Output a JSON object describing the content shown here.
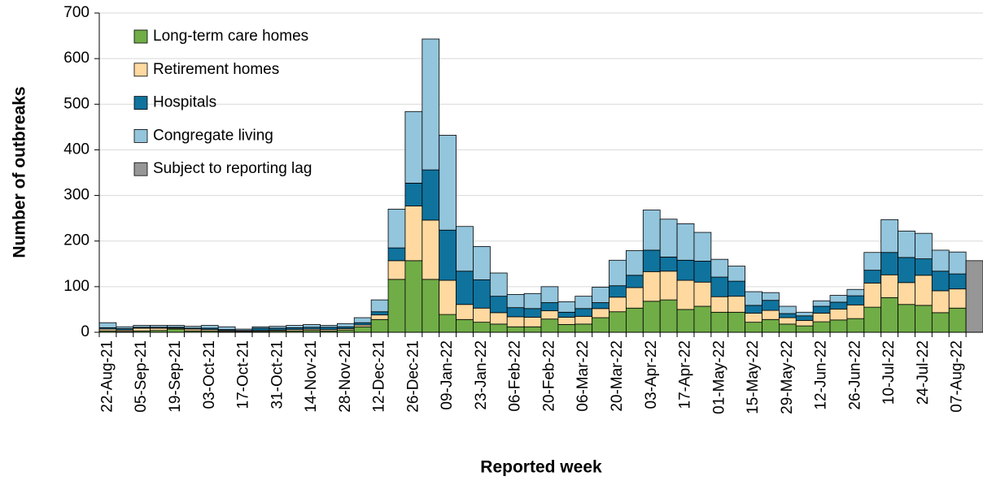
{
  "chart_data": {
    "type": "stacked_bar",
    "x_label": "Reported week",
    "y_label": "Number of outbreaks",
    "categories": [
      "22-Aug-21",
      null,
      "05-Sep-21",
      null,
      "19-Sep-21",
      null,
      "03-Oct-21",
      null,
      "17-Oct-21",
      null,
      "31-Oct-21",
      null,
      "14-Nov-21",
      null,
      "28-Nov-21",
      null,
      "12-Dec-21",
      null,
      "26-Dec-21",
      null,
      "09-Jan-22",
      null,
      "23-Jan-22",
      null,
      "06-Feb-22",
      null,
      "20-Feb-22",
      null,
      "06-Mar-22",
      null,
      "20-Mar-22",
      null,
      "03-Apr-22",
      null,
      "17-Apr-22",
      null,
      "01-May-22",
      null,
      "15-May-22",
      null,
      "29-May-22",
      null,
      "12-Jun-22",
      null,
      "26-Jun-22",
      null,
      "10-Jul-22",
      null,
      "24-Jul-22",
      null,
      "07-Aug-22",
      null
    ],
    "series": [
      {
        "name": "Long-term care homes",
        "color": "#70ad47",
        "values": [
          3,
          2,
          3,
          4,
          7,
          3,
          3,
          2,
          1,
          2,
          3,
          3,
          4,
          3,
          5,
          12,
          28,
          116,
          157,
          116,
          39,
          28,
          22,
          18,
          12,
          12,
          29,
          17,
          18,
          32,
          45,
          53,
          68,
          71,
          50,
          57,
          44,
          44,
          22,
          28,
          18,
          14,
          23,
          27,
          30,
          55,
          76,
          61,
          59,
          43,
          53,
          null
        ]
      },
      {
        "name": "Retirement homes",
        "color": "#ffd9a0",
        "values": [
          4,
          3,
          6,
          5,
          2,
          4,
          3,
          2,
          2,
          2,
          2,
          3,
          3,
          3,
          3,
          4,
          10,
          41,
          120,
          130,
          75,
          33,
          31,
          25,
          22,
          21,
          18,
          16,
          17,
          20,
          32,
          45,
          65,
          63,
          64,
          53,
          34,
          35,
          20,
          20,
          14,
          12,
          19,
          24,
          30,
          53,
          50,
          48,
          66,
          48,
          42,
          null
        ]
      },
      {
        "name": "Hospitals",
        "color": "#0f739e",
        "values": [
          3,
          3,
          2,
          2,
          2,
          2,
          3,
          2,
          1,
          5,
          4,
          4,
          4,
          5,
          4,
          5,
          7,
          28,
          50,
          110,
          110,
          73,
          62,
          36,
          20,
          19,
          18,
          11,
          17,
          13,
          25,
          27,
          47,
          31,
          44,
          46,
          43,
          33,
          17,
          22,
          9,
          10,
          15,
          15,
          20,
          28,
          49,
          55,
          36,
          43,
          33,
          null
        ]
      },
      {
        "name": "Congregate living",
        "color": "#93c5dc",
        "values": [
          11,
          4,
          4,
          4,
          4,
          4,
          6,
          6,
          3,
          3,
          4,
          5,
          6,
          4,
          7,
          11,
          26,
          85,
          157,
          287,
          208,
          98,
          73,
          51,
          29,
          33,
          35,
          23,
          27,
          34,
          56,
          54,
          88,
          83,
          80,
          63,
          39,
          33,
          30,
          17,
          16,
          8,
          12,
          15,
          14,
          39,
          72,
          58,
          56,
          46,
          48,
          null
        ]
      },
      {
        "name": "Subject to reporting lag",
        "color": "#969696",
        "values": [
          null,
          null,
          null,
          null,
          null,
          null,
          null,
          null,
          null,
          null,
          null,
          null,
          null,
          null,
          null,
          null,
          null,
          null,
          null,
          null,
          null,
          null,
          null,
          null,
          null,
          null,
          null,
          null,
          null,
          null,
          null,
          null,
          null,
          null,
          null,
          null,
          null,
          null,
          null,
          null,
          null,
          null,
          null,
          null,
          null,
          null,
          null,
          null,
          null,
          null,
          null,
          157
        ]
      }
    ],
    "ylim": [
      0,
      700
    ],
    "yticks": [
      0,
      100,
      200,
      300,
      400,
      500,
      600,
      700
    ],
    "grid": true,
    "legend": "upper left"
  }
}
